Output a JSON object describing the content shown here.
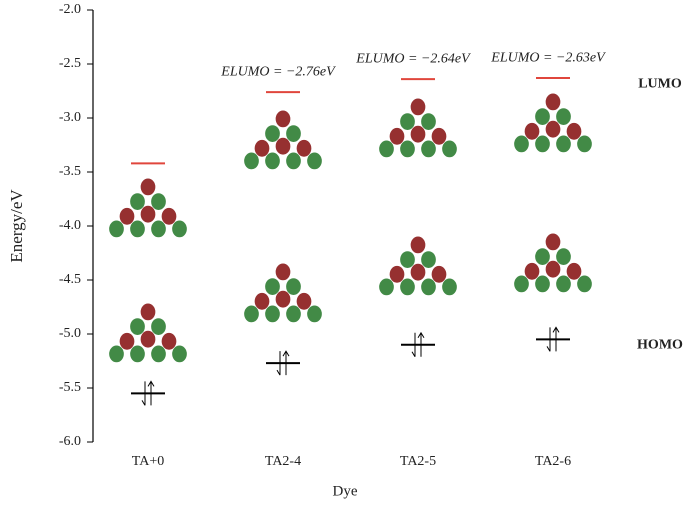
{
  "chart_data": {
    "type": "energy-level",
    "x_label": "Dye",
    "y_label": "Energy/eV",
    "categories": [
      "TA+0",
      "TA2-4",
      "TA2-5",
      "TA2-6"
    ],
    "series": [
      {
        "name": "LUMO",
        "color": "#e0463c",
        "values": [
          -3.42,
          -2.76,
          -2.64,
          -2.63
        ],
        "value_labels": [
          null,
          "ELUMO = −2.76eV",
          "ELUMO = −2.64eV",
          "ELUMO = −2.63eV"
        ]
      },
      {
        "name": "HOMO",
        "color": "#000000",
        "values": [
          -5.55,
          -5.27,
          -5.1,
          -5.05
        ]
      }
    ],
    "ylim": [
      -6.0,
      -2.0
    ],
    "yticks": [
      {
        "value": -2.0,
        "label": "-2.0"
      },
      -2.5,
      {
        "value": -3.0,
        "label": "-3.0"
      },
      -3.5,
      {
        "value": -4.0,
        "label": "-4.0"
      },
      -4.5,
      {
        "value": -5.0,
        "label": "-5.0"
      },
      -5.5,
      {
        "value": -6.0,
        "label": "-6.0"
      }
    ]
  }
}
